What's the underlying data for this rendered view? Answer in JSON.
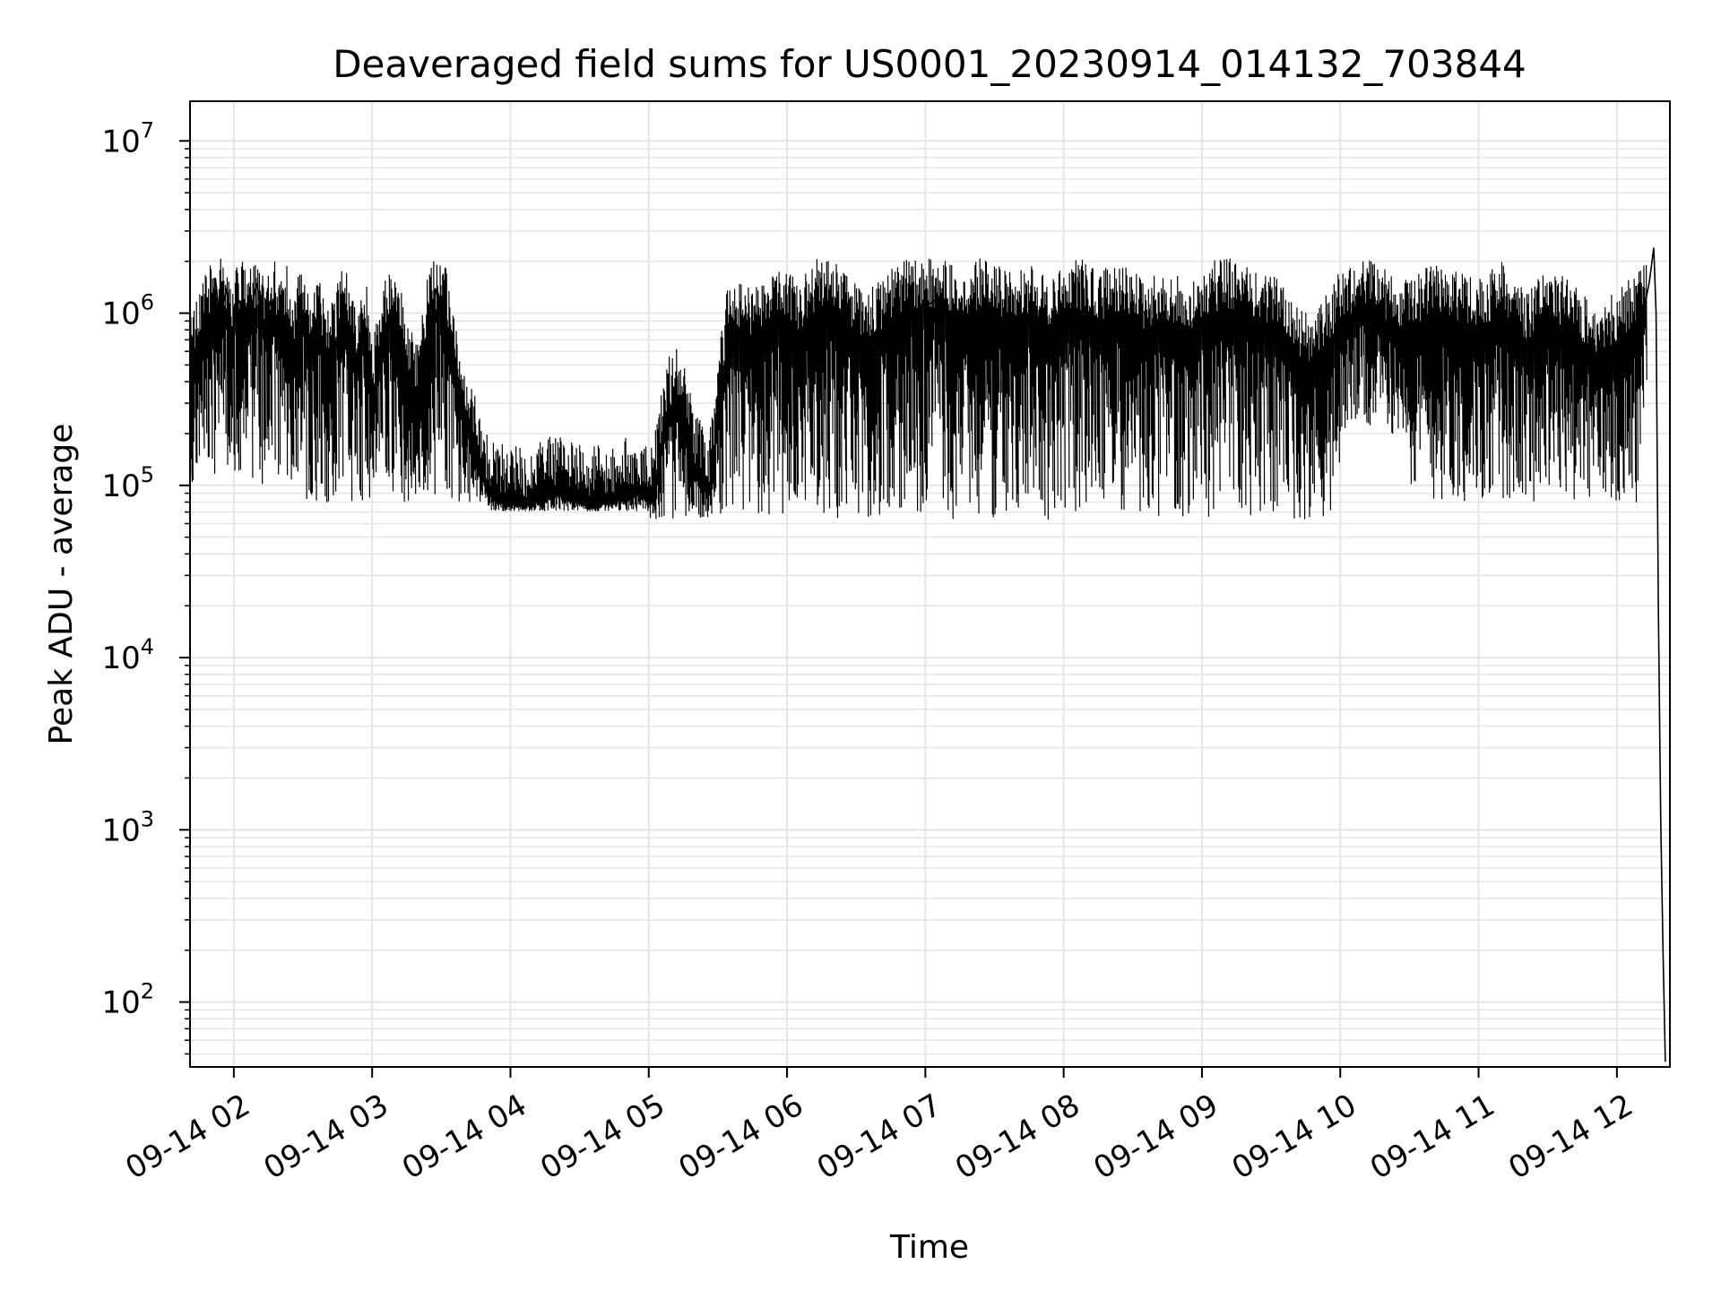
{
  "chart_data": {
    "type": "line",
    "title": "Deaveraged field sums for US0001_20230914_014132_703844",
    "xlabel": "Time",
    "ylabel": "Peak ADU - average",
    "x_ticks": [
      "09-14 02",
      "09-14 03",
      "09-14 04",
      "09-14 05",
      "09-14 06",
      "09-14 07",
      "09-14 08",
      "09-14 09",
      "09-14 10",
      "09-14 11",
      "09-14 12"
    ],
    "y_ticks": [
      {
        "base": "10",
        "exp": "2",
        "value": 100
      },
      {
        "base": "10",
        "exp": "3",
        "value": 1000
      },
      {
        "base": "10",
        "exp": "4",
        "value": 10000
      },
      {
        "base": "10",
        "exp": "5",
        "value": 100000
      },
      {
        "base": "10",
        "exp": "6",
        "value": 1000000
      },
      {
        "base": "10",
        "exp": "7",
        "value": 10000000
      }
    ],
    "xlim": [
      "2023-09-14 01:41",
      "2023-09-14 12:23"
    ],
    "ylim": [
      42,
      17000000
    ],
    "yscale": "log",
    "grid": true,
    "line_color": "#000000",
    "grid_color": "#e5e5e5",
    "series": [
      {
        "x": [
          "01:41",
          "01:45",
          "01:50",
          "01:52",
          "01:54",
          "01:57",
          "01:59",
          "02:02",
          "02:06",
          "02:10",
          "02:13",
          "02:16",
          "02:20",
          "02:23",
          "02:26",
          "02:30",
          "02:33",
          "02:37",
          "02:40",
          "02:44",
          "02:47",
          "02:50",
          "02:53",
          "02:57",
          "03:00",
          "03:04",
          "03:08",
          "03:12",
          "03:15",
          "03:20",
          "03:25",
          "03:28",
          "03:32",
          "03:36",
          "03:40",
          "03:45",
          "03:50",
          "03:55",
          "04:00",
          "04:06",
          "04:12",
          "04:20",
          "04:28",
          "04:35",
          "04:42",
          "04:50",
          "04:55",
          "05:02",
          "05:08",
          "05:14",
          "05:20",
          "05:26",
          "05:35",
          "05:45",
          "05:55",
          "06:05",
          "06:15",
          "06:25",
          "06:35",
          "06:45",
          "06:55",
          "07:05",
          "07:15",
          "07:25",
          "07:35",
          "07:45",
          "07:55",
          "08:05",
          "08:15",
          "08:25",
          "08:35",
          "08:45",
          "08:55",
          "09:05",
          "09:15",
          "09:25",
          "09:35",
          "09:40",
          "09:45",
          "09:50",
          "09:55",
          "10:00",
          "10:10",
          "10:20",
          "10:30",
          "10:40",
          "10:50",
          "11:00",
          "11:10",
          "11:20",
          "11:30",
          "11:40",
          "11:50",
          "12:00",
          "12:05",
          "12:10",
          "12:14",
          "12:16",
          "12:17",
          "12:18",
          "12:19",
          "12:20",
          "12:21"
        ],
        "y": [
          500000,
          600000,
          900000,
          1600000,
          900000,
          1400000,
          700000,
          1200000,
          900000,
          1500000,
          800000,
          1200000,
          700000,
          900000,
          600000,
          1000000,
          550000,
          800000,
          450000,
          600000,
          900000,
          700000,
          500000,
          800000,
          300000,
          600000,
          900000,
          700000,
          400000,
          300000,
          900000,
          1400000,
          900000,
          400000,
          250000,
          150000,
          90000,
          80000,
          78000,
          75000,
          80000,
          90000,
          80000,
          75000,
          80000,
          85000,
          90000,
          80000,
          250000,
          300000,
          120000,
          90000,
          800000,
          600000,
          900000,
          700000,
          1000000,
          800000,
          600000,
          800000,
          1000000,
          1200000,
          700000,
          1000000,
          800000,
          900000,
          700000,
          1000000,
          800000,
          900000,
          700000,
          800000,
          700000,
          900000,
          1000000,
          800000,
          700000,
          500000,
          450000,
          500000,
          600000,
          800000,
          1000000,
          800000,
          700000,
          900000,
          800000,
          700000,
          900000,
          600000,
          800000,
          700000,
          500000,
          600000,
          700000,
          800000,
          1500000,
          2400000,
          1000000,
          20000,
          1200,
          200,
          45
        ]
      }
    ]
  }
}
